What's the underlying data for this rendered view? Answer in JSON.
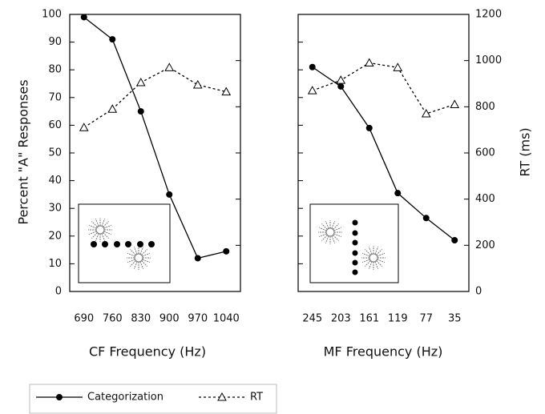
{
  "chart_data": [
    {
      "type": "line",
      "xlabel": "CF Frequency (Hz)",
      "ylabel": "Percent \"A\" Responses",
      "categories": [
        "690",
        "760",
        "830",
        "900",
        "970",
        "1040"
      ],
      "ylim": [
        0,
        100
      ],
      "yticks": [
        0,
        10,
        20,
        30,
        40,
        50,
        60,
        70,
        80,
        90,
        100
      ],
      "y2lim": [
        0,
        1200
      ],
      "series": [
        {
          "name": "Categorization",
          "color": "#000000",
          "marker": "circle",
          "dash": false,
          "values": [
            99,
            91,
            65,
            35,
            12,
            14.5
          ]
        },
        {
          "name": "RT",
          "axis": "y2",
          "color": "#000000",
          "marker": "triangle",
          "dash": true,
          "values": [
            710,
            790,
            905,
            970,
            895,
            865
          ]
        }
      ]
    },
    {
      "type": "line",
      "xlabel": "MF Frequency (Hz)",
      "y2label": "RT (ms)",
      "categories": [
        "245",
        "203",
        "161",
        "119",
        "77",
        "35"
      ],
      "ylim": [
        0,
        100
      ],
      "y2lim": [
        0,
        1200
      ],
      "y2ticks": [
        0,
        200,
        400,
        600,
        800,
        1000,
        1200
      ],
      "series": [
        {
          "color": "#000000",
          "marker": "circle",
          "dash": false,
          "values": [
            81,
            74,
            59,
            35.5,
            26.5,
            18.5
          ]
        },
        {
          "axis": "y2",
          "color": "#000000",
          "marker": "triangle",
          "dash": true,
          "values": [
            870,
            915,
            990,
            970,
            770,
            810
          ]
        }
      ]
    }
  ]
}
